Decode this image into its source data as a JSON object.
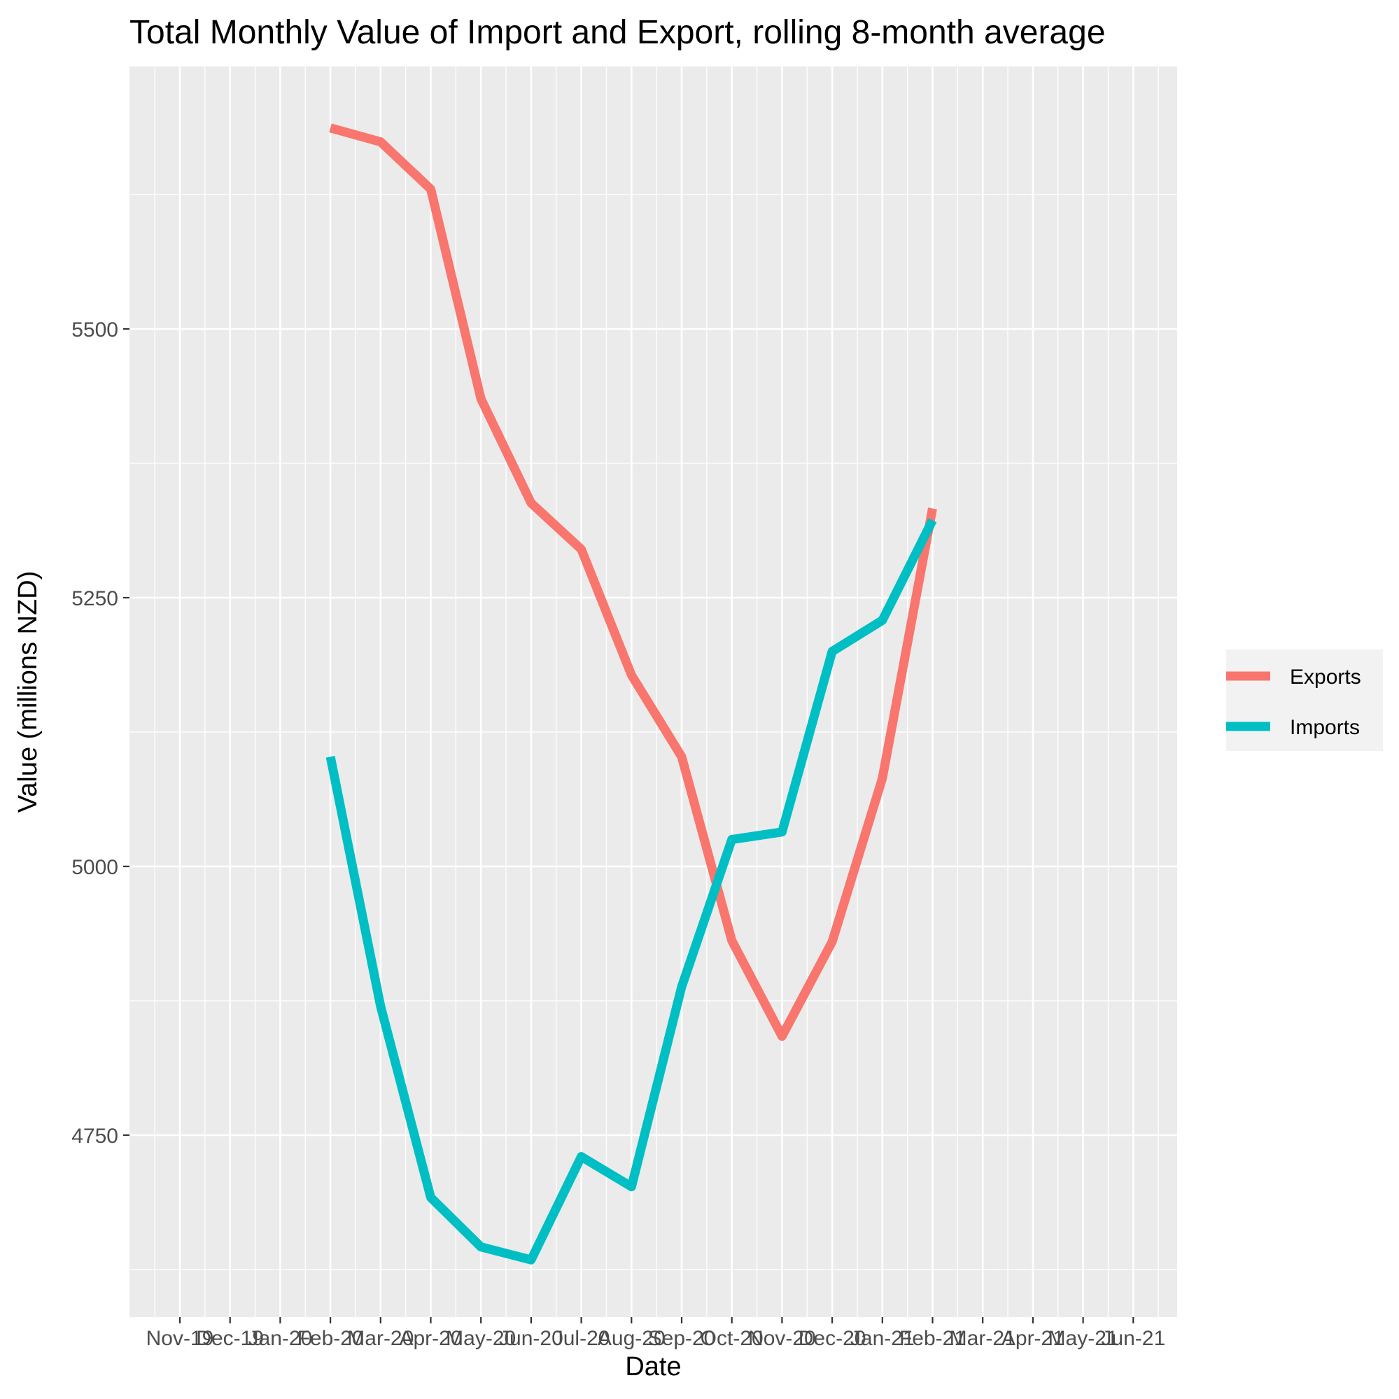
{
  "chart_data": {
    "type": "line",
    "title": "Total Monthly Value of Import and Export, rolling 8-month average",
    "xlabel": "Date",
    "ylabel": "Value (millions NZD)",
    "x_tick_labels": [
      "Nov-19",
      "Dec-19",
      "Jan-20",
      "Feb-20",
      "Mar-20",
      "Apr-20",
      "May-20",
      "Jun-20",
      "Jul-20",
      "Aug-20",
      "Sep-20",
      "Oct-20",
      "Nov-20",
      "Dec-20",
      "Jan-21",
      "Feb-21",
      "Mar-21",
      "Apr-21",
      "May-21",
      "Jun-21"
    ],
    "y_ticks": [
      4750,
      5000,
      5250,
      5500
    ],
    "ylim": [
      4555,
      5745
    ],
    "grid": true,
    "legend_position": "right",
    "series": [
      {
        "name": "Exports",
        "color": "#F8766D",
        "x": [
          "Feb-20",
          "Mar-20",
          "Apr-20",
          "May-20",
          "Jun-20",
          "Jul-20",
          "Aug-20",
          "Sep-20",
          "Oct-20",
          "Nov-20",
          "Dec-20",
          "Jan-21",
          "Feb-21"
        ],
        "values": [
          5687,
          5674,
          5630,
          5435,
          5338,
          5295,
          5178,
          5102,
          4931,
          4842,
          4930,
          5082,
          5333
        ]
      },
      {
        "name": "Imports",
        "color": "#00BFC4",
        "x": [
          "Feb-20",
          "Mar-20",
          "Apr-20",
          "May-20",
          "Jun-20",
          "Jul-20",
          "Aug-20",
          "Sep-20",
          "Oct-20",
          "Nov-20",
          "Dec-20",
          "Jan-21",
          "Feb-21"
        ],
        "values": [
          5102,
          4870,
          4692,
          4646,
          4634,
          4730,
          4702,
          4888,
          5025,
          5032,
          5200,
          5229,
          5322
        ]
      }
    ]
  }
}
